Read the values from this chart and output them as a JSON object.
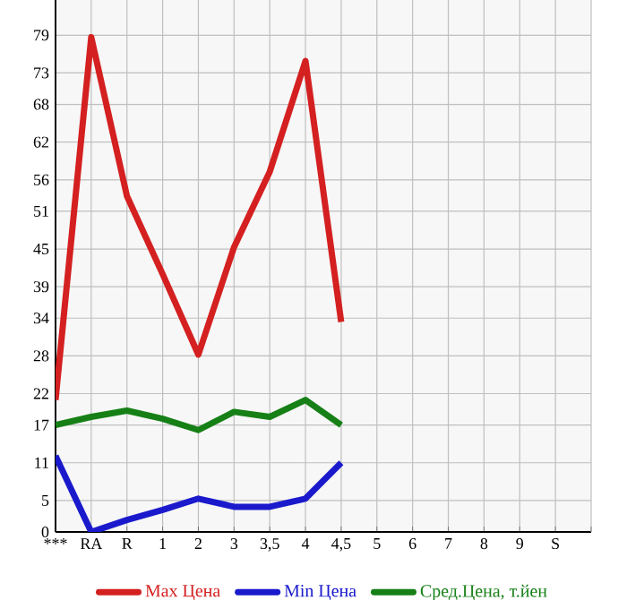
{
  "chart_data": {
    "type": "line",
    "categories": [
      "***",
      "RA",
      "R",
      "1",
      "2",
      "3",
      "3,5",
      "4",
      "4,5",
      "5",
      "6",
      "7",
      "8",
      "9",
      "S"
    ],
    "ylim": [
      0,
      84.6
    ],
    "yticks": [
      0,
      5,
      11,
      17,
      22,
      28,
      34,
      39,
      45,
      51,
      56,
      62,
      68,
      73,
      79
    ],
    "grid": true,
    "legend": "bottom",
    "marker": "none",
    "line_style": "solid",
    "series": [
      {
        "name": "Max Цена",
        "color": "#d42020",
        "values": [
          21.0,
          78.7,
          53.4,
          41,
          28.2,
          45.3,
          57.3,
          74.9,
          33.4,
          null,
          null,
          null,
          null,
          null,
          null
        ]
      },
      {
        "name": "Min Цена",
        "color": "#1a1acc",
        "values": [
          12.1,
          0,
          1.9,
          3.5,
          5.3,
          4.0,
          4.0,
          5.3,
          11.0,
          null,
          null,
          null,
          null,
          null,
          null
        ]
      },
      {
        "name": "Сред.Цена, т.йен",
        "color": "#168016",
        "values": [
          17.0,
          18.3,
          19.3,
          18.0,
          16.2,
          19.1,
          18.3,
          21.0,
          17.0,
          null,
          null,
          null,
          null,
          null,
          null
        ]
      }
    ]
  }
}
